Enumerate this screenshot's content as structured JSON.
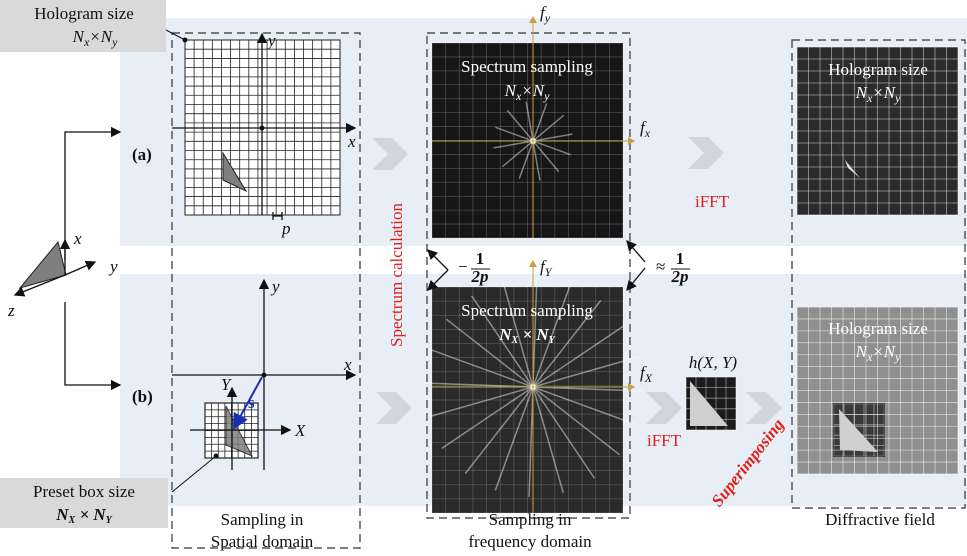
{
  "hologram_label": {
    "title": "Hologram size",
    "dims": [
      "N",
      "x",
      "×N",
      "y"
    ]
  },
  "row_labels": [
    "(a)",
    "(b)"
  ],
  "spatial_axes_a": {
    "x": "x",
    "y": "y",
    "pitch": "p"
  },
  "object_axes": {
    "x": "x",
    "y": "y",
    "z": "z"
  },
  "spatial_axes_b": {
    "x": "x",
    "y": "y",
    "X": "X",
    "Y": "Y",
    "shift": "s"
  },
  "spectrum_calculation": "Spectrum calculation",
  "spectrum_a": {
    "title": "Spectrum sampling",
    "dims": [
      "N",
      "x",
      "×N",
      "y"
    ],
    "fx": [
      "f",
      "x"
    ],
    "fy": [
      "f",
      "y"
    ]
  },
  "spectrum_b": {
    "title": "Spectrum sampling",
    "dims": [
      "N",
      "X",
      " × N",
      "Y"
    ],
    "fx": [
      "f",
      "X"
    ],
    "fy": [
      "f",
      "Y"
    ]
  },
  "bandwidth_left": {
    "sign": "−",
    "num": "1",
    "den": "2p"
  },
  "bandwidth_right": {
    "sign": "≈",
    "num": "1",
    "den": "2p"
  },
  "ifft_labels": [
    "iFFT",
    "iFFT"
  ],
  "hologram_a": {
    "title": "Hologram size",
    "dims": [
      "N",
      "x",
      "×N",
      "y"
    ]
  },
  "hologram_b": {
    "title": "Hologram size",
    "dims": [
      "N",
      "x",
      "×N",
      "y"
    ]
  },
  "kernel_label": "h(X, Y)",
  "superimposing": "Superimposing",
  "preset_box": {
    "title": "Preset box size",
    "dims": [
      "N",
      "X",
      " × N",
      "Y"
    ]
  },
  "captions": {
    "spatial": [
      "Sampling in",
      "Spatial domain"
    ],
    "frequency": [
      "Sampling in",
      "frequency domain"
    ],
    "field": "Diffractive field"
  }
}
